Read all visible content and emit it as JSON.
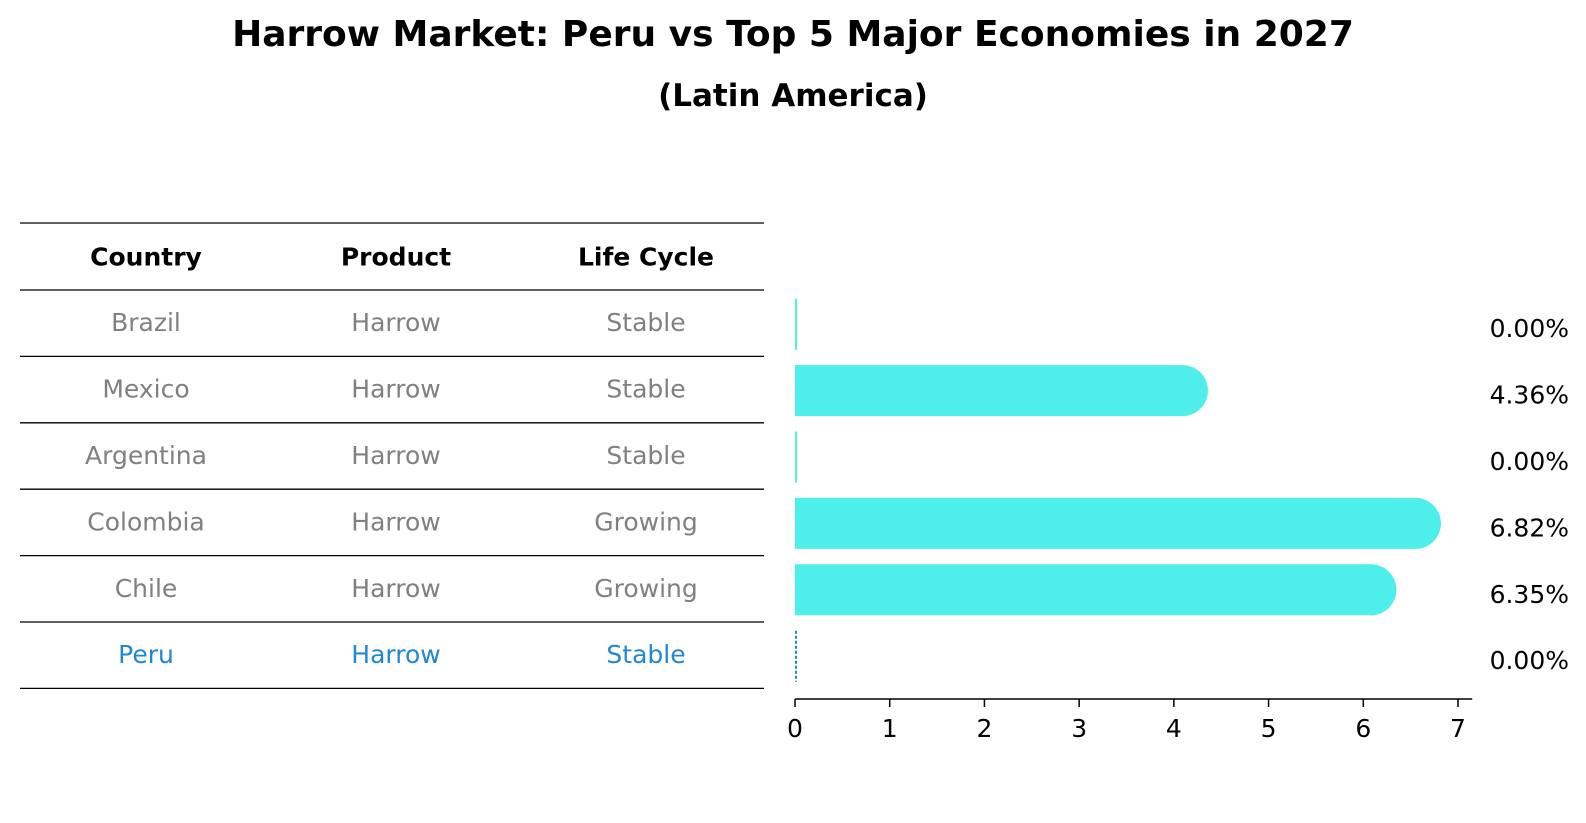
{
  "title": "Harrow Market: Peru vs Top 5 Major Economies in 2027",
  "subtitle": "(Latin America)",
  "colors": {
    "bar": "#4eeeea",
    "highlight": "#1f87d4",
    "row_text": "#808080",
    "header_text": "#000000",
    "rule": "#000000"
  },
  "table": {
    "headers": [
      "Country",
      "Product",
      "Life Cycle"
    ],
    "rows": [
      {
        "country": "Brazil",
        "product": "Harrow",
        "life_cycle": "Stable",
        "highlight": false
      },
      {
        "country": "Mexico",
        "product": "Harrow",
        "life_cycle": "Stable",
        "highlight": false
      },
      {
        "country": "Argentina",
        "product": "Harrow",
        "life_cycle": "Stable",
        "highlight": false
      },
      {
        "country": "Colombia",
        "product": "Harrow",
        "life_cycle": "Growing",
        "highlight": false
      },
      {
        "country": "Chile",
        "product": "Harrow",
        "life_cycle": "Growing",
        "highlight": false
      },
      {
        "country": "Peru",
        "product": "Harrow",
        "life_cycle": "Stable",
        "highlight": true
      }
    ]
  },
  "chart_data": {
    "type": "bar",
    "orientation": "horizontal",
    "categories": [
      "Brazil",
      "Mexico",
      "Argentina",
      "Colombia",
      "Chile",
      "Peru"
    ],
    "values": [
      0.0,
      4.36,
      0.0,
      6.82,
      6.35,
      0.0
    ],
    "value_labels": [
      "0.00%",
      "4.36%",
      "0.00%",
      "6.82%",
      "6.35%",
      "0.00%"
    ],
    "xlim": [
      0,
      7.15
    ],
    "xticks": [
      0,
      1,
      2,
      3,
      4,
      5,
      6,
      7
    ],
    "grid": false,
    "legend": "none"
  }
}
